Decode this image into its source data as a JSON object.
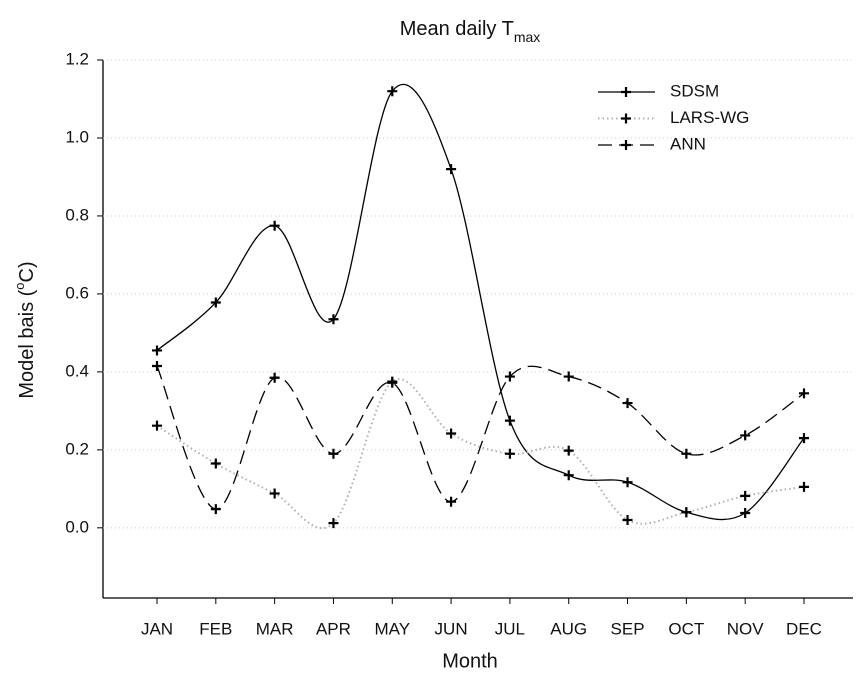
{
  "chart_data": {
    "type": "line",
    "title": "Mean daily T",
    "title_subscript": "max",
    "x_label": "Month",
    "y_label": "Model bais (",
    "y_label_superscript": "o",
    "y_label_suffix": "C)",
    "categories": [
      "JAN",
      "FEB",
      "MAR",
      "APR",
      "MAY",
      "JUN",
      "JUL",
      "AUG",
      "SEP",
      "OCT",
      "NOV",
      "DEC"
    ],
    "series": [
      {
        "name": "SDSM",
        "color": "#000000",
        "line_style": "solid",
        "values": [
          0.455,
          0.578,
          0.775,
          0.535,
          1.12,
          0.92,
          0.275,
          0.135,
          0.117,
          0.04,
          0.038,
          0.23
        ]
      },
      {
        "name": "LARS-WG",
        "color": "#b0b0b0",
        "line_style": "dotted",
        "values": [
          0.262,
          0.165,
          0.088,
          0.012,
          0.375,
          0.242,
          0.19,
          0.198,
          0.02,
          0.04,
          0.082,
          0.105
        ]
      },
      {
        "name": "ANN",
        "color": "#000000",
        "line_style": "dashed",
        "values": [
          0.415,
          0.048,
          0.385,
          0.19,
          0.372,
          0.067,
          0.388,
          0.388,
          0.32,
          0.19,
          0.237,
          0.345
        ]
      }
    ],
    "ylim": [
      -0.18,
      1.2
    ],
    "yticks": [
      {
        "value": 0,
        "label": "0.0"
      },
      0.2,
      0.4,
      0.6,
      0.8,
      {
        "value": 1,
        "label": "1.0"
      },
      1.2
    ],
    "grid": true,
    "legend": "top-right"
  }
}
